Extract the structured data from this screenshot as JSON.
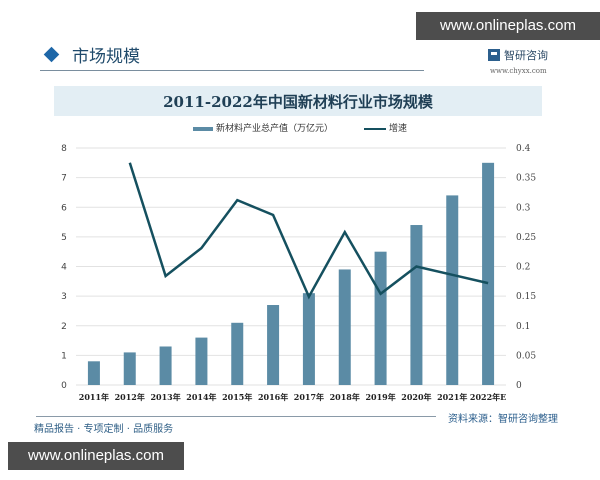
{
  "watermarks": {
    "top": "www.onlineplas.com",
    "bottom": "www.onlineplas.com"
  },
  "header": {
    "section_title": "市场规模",
    "brand_name": "智研咨询",
    "brand_url": "www.chyxx.com"
  },
  "legend": {
    "bar_label": "新材料产业总产值（万亿元）",
    "line_label": "增速"
  },
  "footer": {
    "slogan": "精品报告 · 专项定制 · 品质服务",
    "source": "资料来源：智研咨询整理"
  },
  "colors": {
    "bar": "#5b8ba5",
    "line": "#15505f",
    "grid": "#e2e2e2",
    "title_band": "#e3eef4",
    "accent": "#1e67a8"
  },
  "chart_data": {
    "type": "bar",
    "title": "2011-2022年中国新材料行业市场规模",
    "categories": [
      "2011年",
      "2012年",
      "2013年",
      "2014年",
      "2015年",
      "2016年",
      "2017年",
      "2018年",
      "2019年",
      "2020年",
      "2021年",
      "2022年E"
    ],
    "series": [
      {
        "name": "新材料产业总产值（万亿元）",
        "type": "bar",
        "axis": "left",
        "values": [
          0.8,
          1.1,
          1.3,
          1.6,
          2.1,
          2.7,
          3.1,
          3.9,
          4.5,
          5.4,
          6.4,
          7.5
        ]
      },
      {
        "name": "增速",
        "type": "line",
        "axis": "right",
        "values": [
          null,
          0.375,
          0.184,
          0.231,
          0.312,
          0.287,
          0.149,
          0.258,
          0.154,
          0.2,
          0.186,
          0.172
        ]
      }
    ],
    "xlabel": "",
    "ylabel": "",
    "ylim": [
      0,
      8
    ],
    "yticks": [
      0,
      1,
      2,
      3,
      4,
      5,
      6,
      7,
      8
    ],
    "y2lim": [
      0,
      0.4
    ],
    "y2ticks": [
      "0",
      "0.05",
      "0.1",
      "0.15",
      "0.2",
      "0.25",
      "0.3",
      "0.35",
      "0.4"
    ],
    "grid": true,
    "legend_position": "top"
  }
}
